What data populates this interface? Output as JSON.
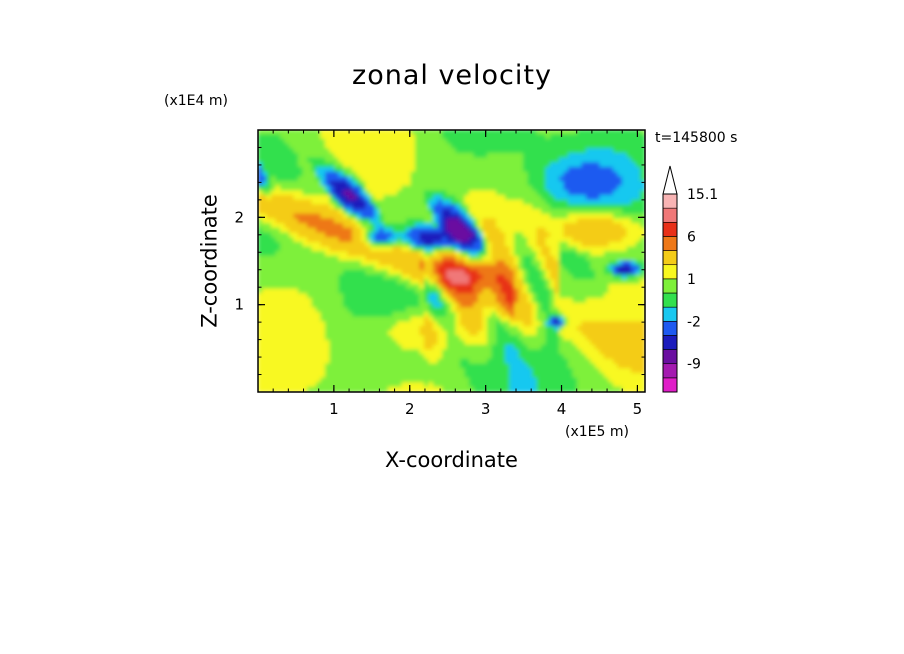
{
  "chart_data": {
    "type": "heatmap",
    "title": "zonal velocity",
    "xlabel": "X-coordinate",
    "ylabel": "Z-coordinate",
    "x_unit": "(x1E5 m)",
    "y_unit": "(x1E4 m)",
    "time_label": "t=145800 s",
    "xlim": [
      0,
      5.1
    ],
    "ylim": [
      0,
      3.0
    ],
    "x_ticks": [
      1,
      2,
      3,
      4,
      5
    ],
    "y_ticks": [
      1,
      2
    ],
    "colorbar": {
      "levels": [
        -15,
        -12,
        -9,
        -6,
        -4,
        -2,
        -1,
        0,
        1,
        2,
        4,
        6,
        9,
        12,
        15.1
      ],
      "colors": [
        "#e01ec8",
        "#a41ab0",
        "#6a0fa0",
        "#1c1cbc",
        "#1e5af0",
        "#19c8f0",
        "#33e04e",
        "#7ef03a",
        "#f8f820",
        "#f4cc18",
        "#ee7818",
        "#e83018",
        "#f07878",
        "#f8b4b4"
      ],
      "tick_labels": [
        "15.1",
        "6",
        "1",
        "-2",
        "-9"
      ],
      "tick_values": [
        15.1,
        6,
        1,
        -2,
        -9
      ]
    },
    "features": [
      {
        "kind": "background",
        "value": 0.5,
        "note": "yellow/green mixed field"
      },
      {
        "kind": "band",
        "value": 3,
        "description": "orange band descending from upper-left to center"
      },
      {
        "kind": "wave_train",
        "value": -6,
        "description": "blue oscillations along upper left"
      },
      {
        "kind": "jet",
        "value": 8,
        "description": "strong orange-red core near center"
      }
    ]
  }
}
